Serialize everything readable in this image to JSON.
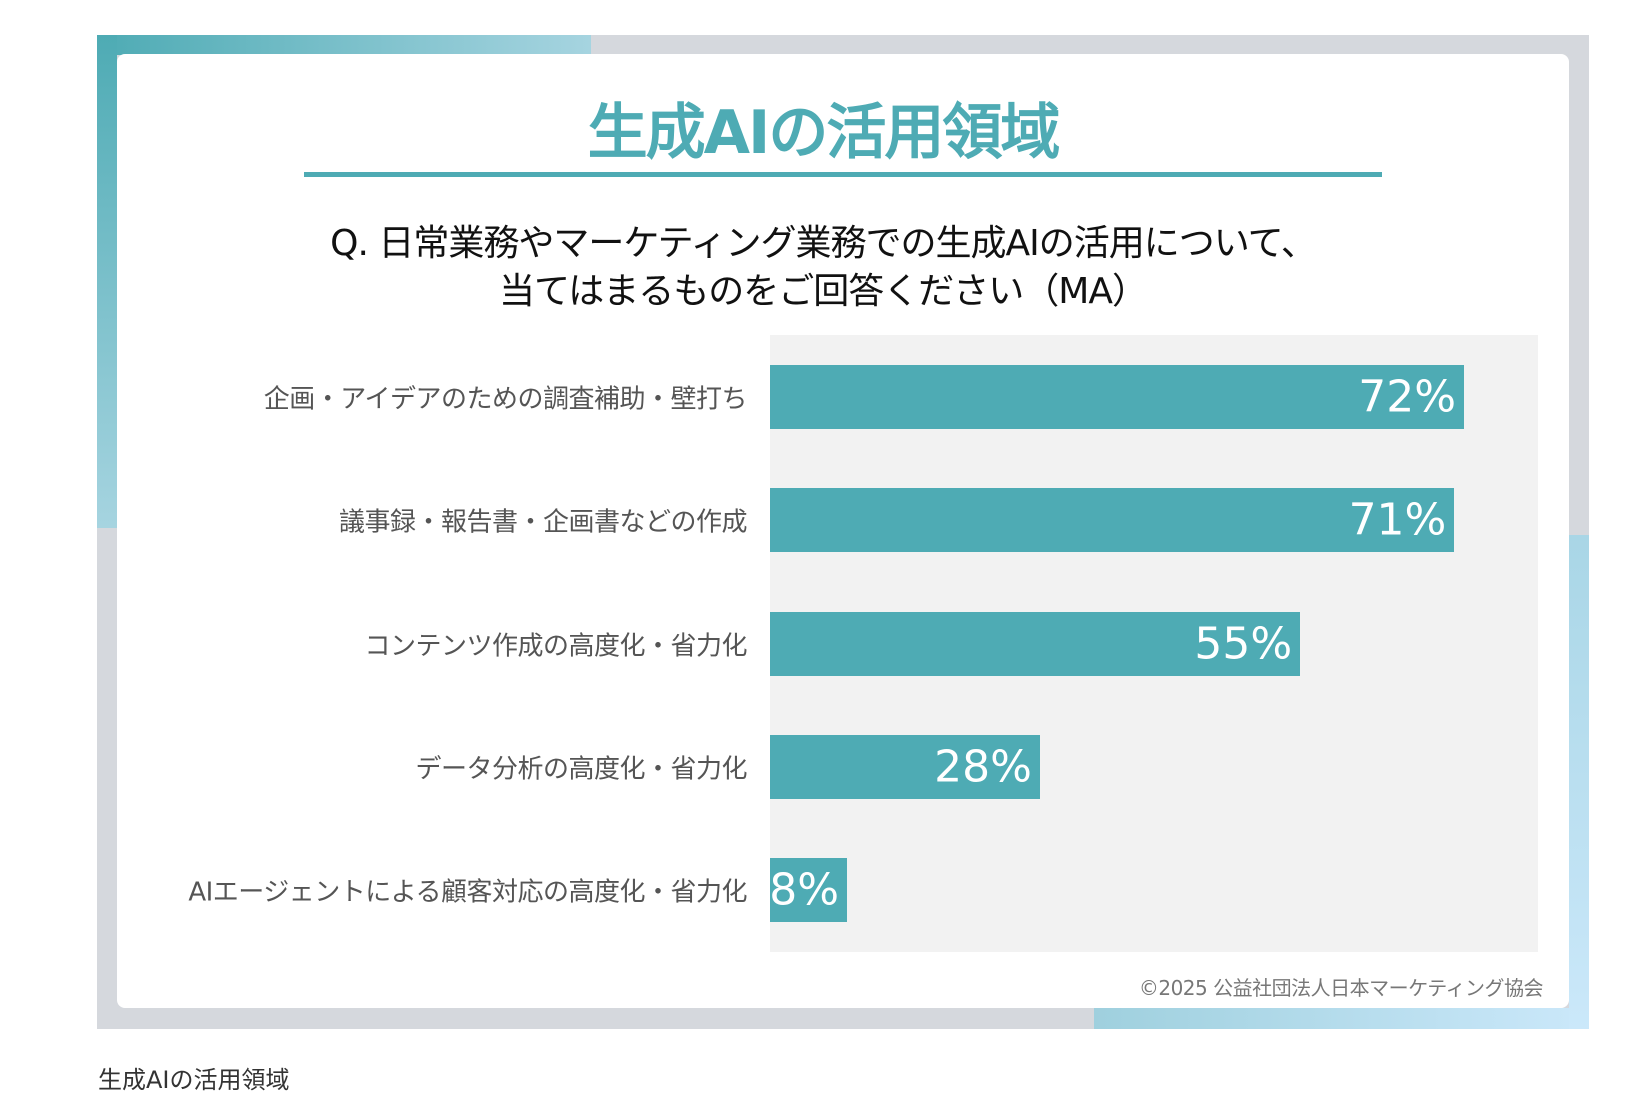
{
  "chart_data": {
    "type": "bar",
    "orientation": "horizontal",
    "title": "生成AIの活用領域",
    "subtitle": [
      "Q. 日常業務やマーケティング業務での生成AIの活用について、",
      "当てはまるものをご回答ください（MA）"
    ],
    "categories": [
      "企画・アイデアのための調査補助・壁打ち",
      "議事録・報告書・企画書などの作成",
      "コンテンツ作成の高度化・省力化",
      "データ分析の高度化・省力化",
      "AIエージェントによる顧客対応の高度化・省力化"
    ],
    "values": [
      72,
      71,
      55,
      28,
      8
    ],
    "value_labels": [
      "72%",
      "71%",
      "55%",
      "28%",
      "8%"
    ],
    "unit": "%",
    "bar_color": "#4eabb4",
    "grid": false
  },
  "copyright": "©2025 公益社団法人日本マーケティング協会",
  "caption": "生成AIの活用領域"
}
